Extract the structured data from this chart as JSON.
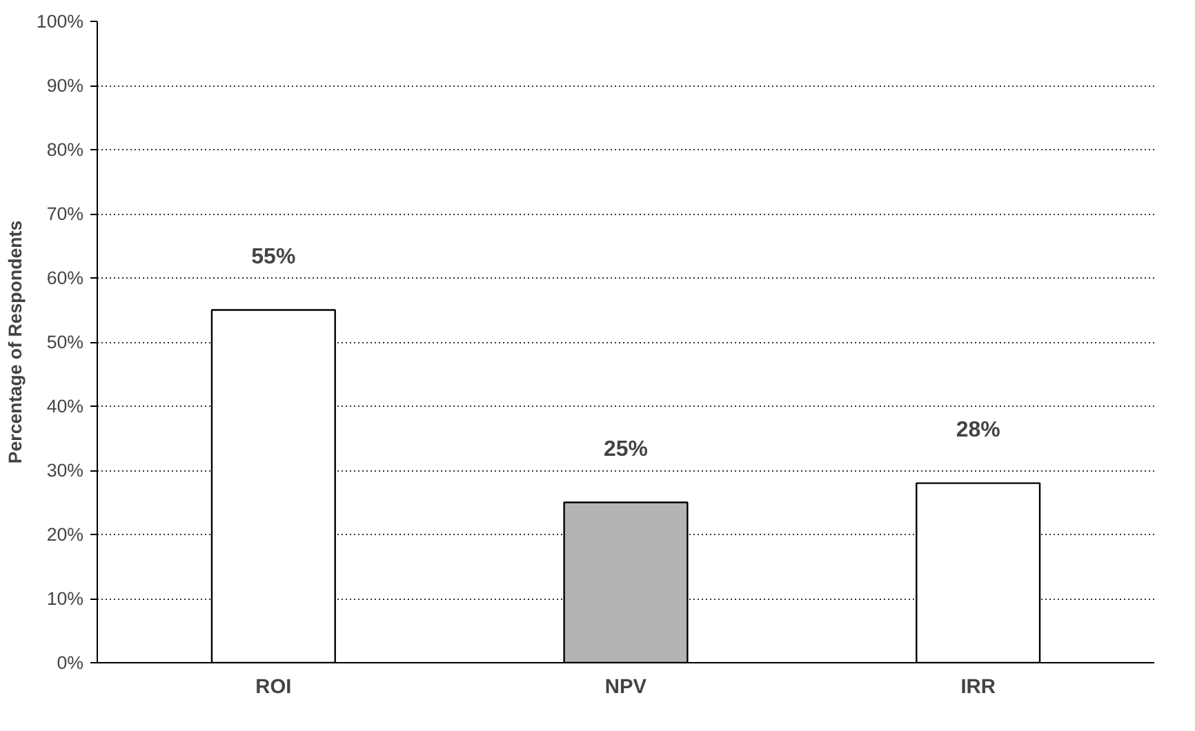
{
  "chart_data": {
    "type": "bar",
    "ylabel": "Percentage of Respondents",
    "categories": [
      "ROI",
      "NPV",
      "IRR"
    ],
    "values": [
      55,
      25,
      28
    ],
    "colors": [
      "#ffffff",
      "#b4b4b4",
      "#ffffff"
    ],
    "data_labels": true,
    "value_labels": [
      "55%",
      "25%",
      "28%"
    ],
    "ylim": [
      0,
      100
    ],
    "yticks": [
      {
        "value": 0,
        "label": "0%"
      },
      {
        "value": 10,
        "label": "10%"
      },
      {
        "value": 20,
        "label": "20%"
      },
      {
        "value": 30,
        "label": "30%"
      },
      {
        "value": 40,
        "label": "40%"
      },
      {
        "value": 50,
        "label": "50%"
      },
      {
        "value": 60,
        "label": "60%"
      },
      {
        "value": 70,
        "label": "70%"
      },
      {
        "value": 80,
        "label": "80%"
      },
      {
        "value": 90,
        "label": "90%"
      },
      {
        "value": 100,
        "label": "100%"
      }
    ],
    "grid": "y"
  }
}
